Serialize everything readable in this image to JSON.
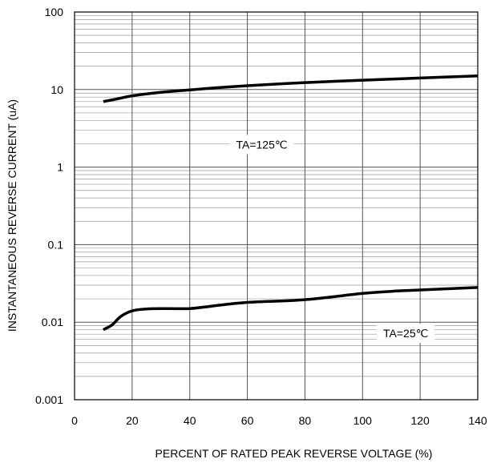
{
  "chart_data": {
    "type": "line",
    "xlabel": "PERCENT OF RATED PEAK REVERSE VOLTAGE (%)",
    "ylabel": "INSTANTANEOUS REVERSE CURRENT (uA)",
    "xlim": [
      0,
      140
    ],
    "ylim": [
      0.001,
      100
    ],
    "yscale": "log",
    "grid": true,
    "x_ticks": [
      "0",
      "20",
      "40",
      "60",
      "80",
      "100",
      "120",
      "140"
    ],
    "y_ticks": [
      "0.001",
      "0.01",
      "0.1",
      "1",
      "10",
      "100"
    ],
    "series": [
      {
        "x": [
          10,
          15,
          20,
          30,
          40,
          50,
          60,
          80,
          100,
          120,
          140
        ],
        "y": [
          7,
          7.6,
          8.3,
          9.2,
          9.9,
          10.6,
          11.2,
          12.3,
          13.2,
          14.1,
          15
        ]
      },
      {
        "x": [
          10,
          13,
          16,
          20,
          25,
          30,
          40,
          50,
          60,
          80,
          100,
          110,
          120,
          140
        ],
        "y": [
          0.008,
          0.0092,
          0.0118,
          0.014,
          0.0148,
          0.015,
          0.015,
          0.0165,
          0.018,
          0.0195,
          0.0235,
          0.025,
          0.026,
          0.028
        ]
      }
    ],
    "annotations": [
      {
        "text": "TA=125℃",
        "x": 65,
        "y": 1.95
      },
      {
        "text": "TA=25℃",
        "x": 115,
        "y": 0.0072
      }
    ]
  }
}
